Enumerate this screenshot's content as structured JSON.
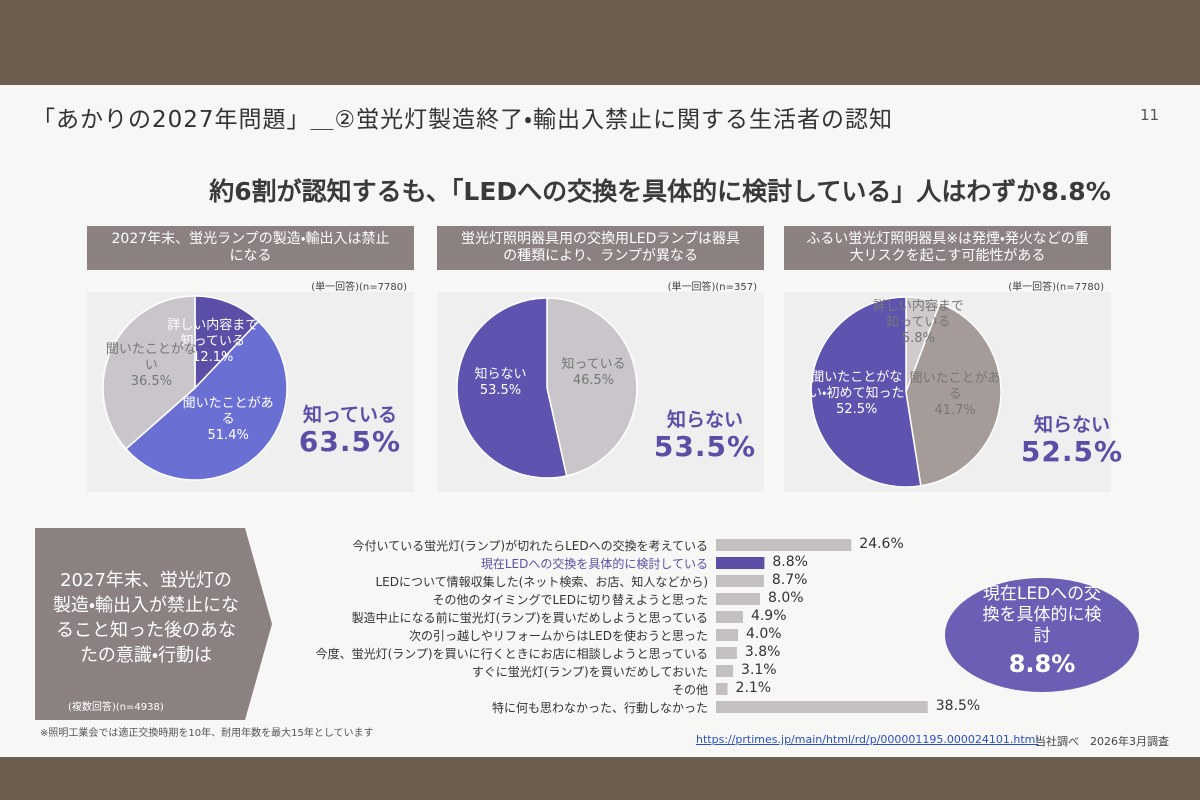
{
  "slide": {
    "title": "「あかりの2027年問題」＿②蛍光灯製造終了・輸出入禁止に関する生活者の認知",
    "page_number": "11",
    "headline": "約6割が認知するも、「LEDへの交換を具体的に検討している」人はわずか8.8%",
    "footnote": "※照明工業会では適正交換時期を10年、耐用年数を最大15年としています",
    "source_url": "https://prtimes.jp/main/html/rd/p/000001195.000024101.html",
    "source_note": "当社調べ　2026年3月調査"
  },
  "chart_data": [
    {
      "type": "pie",
      "title": "2027年末、蛍光ランプの製造・輸出入は禁止になる",
      "note": "(単一回答)(n=7780)",
      "categories": [
        "詳しい内容まで知っている",
        "聞いたことがある",
        "聞いたことがない"
      ],
      "values": [
        12.1,
        51.4,
        36.5
      ],
      "value_labels": [
        "12.1%",
        "51.4%",
        "36.5%"
      ],
      "colors": [
        "#5a4ea6",
        "#6a6fd4",
        "#c9c5cb"
      ],
      "summary_label": "知っている",
      "summary_value": "63.5%"
    },
    {
      "type": "pie",
      "title": "蛍光灯照明器具用の交換用LEDランプは器具の種類により、ランプが異なる",
      "note": "(単一回答)(n=357)",
      "categories": [
        "知っている",
        "知らない"
      ],
      "values": [
        46.5,
        53.5
      ],
      "value_labels": [
        "46.5%",
        "53.5%"
      ],
      "colors": [
        "#c9c5cb",
        "#5e54b0"
      ],
      "summary_label": "知らない",
      "summary_value": "53.5%"
    },
    {
      "type": "pie",
      "title": "ふるい蛍光灯照明器具※は発煙・発火などの重大リスクを起こす可能性がある",
      "note": "(単一回答)(n=7780)",
      "categories": [
        "詳しい内容まで知っている",
        "聞いたことがある",
        "聞いたことがない・初めて知った"
      ],
      "values": [
        5.8,
        41.7,
        52.5
      ],
      "value_labels": [
        "5.8%",
        "41.7%",
        "52.5%"
      ],
      "colors": [
        "#cfcbcd",
        "#a59b99",
        "#5e54b0"
      ],
      "summary_label": "知らない",
      "summary_value": "52.5%"
    },
    {
      "type": "bar",
      "orientation": "horizontal",
      "title": "2027年末、蛍光灯の製造・輸出入が禁止になること知った後のあなたの意識・行動は",
      "note": "(複数回答)(n=4938)",
      "categories": [
        "今付いている蛍光灯(ランプ)が切れたらLEDへの交換を考えている",
        "現在LEDへの交換を具体的に検討している",
        "LEDについて情報収集した(ネット検索、お店、知人などから)",
        "その他のタイミングでLEDに切り替えようと思った",
        "製造中止になる前に蛍光灯(ランプ)を買いだめしようと思っている",
        "次の引っ越しやリフォームからはLEDを使おうと思った",
        "今度、蛍光灯(ランプ)を買いに行くときにお店に相談しようと思っている",
        "すぐに蛍光灯(ランプ)を買いだめしておいた",
        "その他",
        "特に何も思わなかった、行動しなかった"
      ],
      "values": [
        24.6,
        8.8,
        8.7,
        8.0,
        4.9,
        4.0,
        3.8,
        3.1,
        2.1,
        38.5
      ],
      "value_labels": [
        "24.6%",
        "8.8%",
        "8.7%",
        "8.0%",
        "4.9%",
        "4.0%",
        "3.8%",
        "3.1%",
        "2.1%",
        "38.5%"
      ],
      "color": "#c4c0c0",
      "colors": [
        "#c4c0c0",
        "#5a4ea6",
        "#c4c0c0",
        "#c4c0c0",
        "#c4c0c0",
        "#c4c0c0",
        "#c4c0c0",
        "#c4c0c0",
        "#c4c0c0",
        "#c4c0c0"
      ],
      "xlim": [
        0,
        40
      ],
      "callout": "現在LEDへの交換を具体的に検討"
    }
  ]
}
